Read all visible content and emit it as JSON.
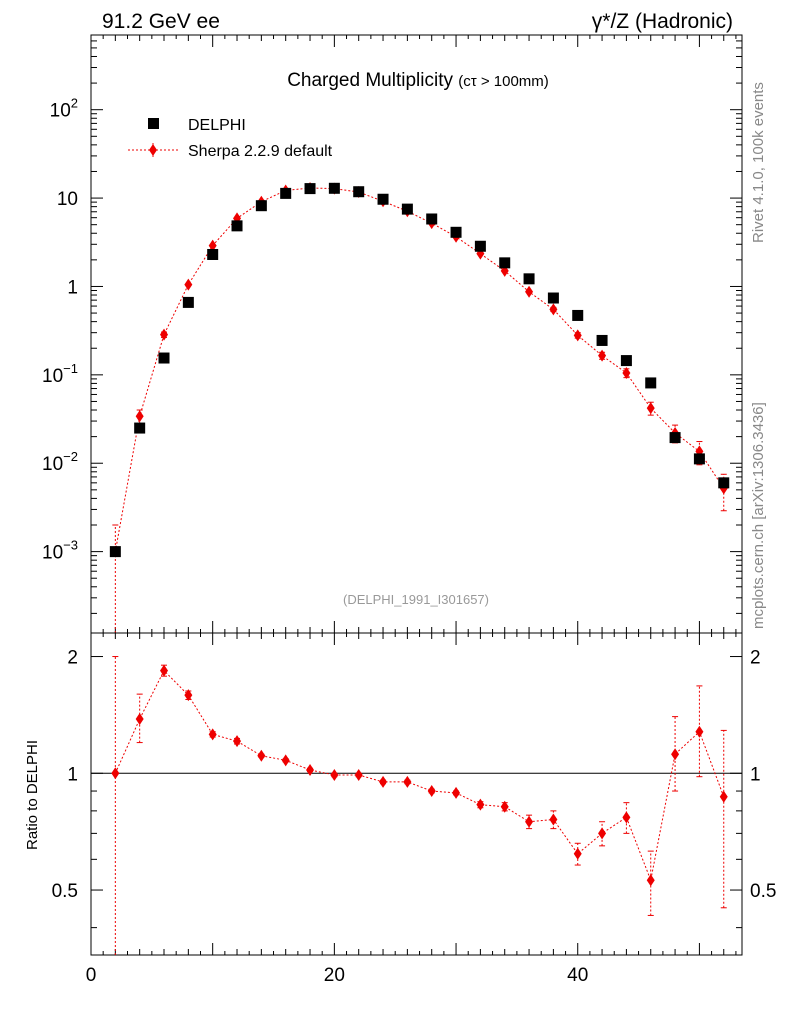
{
  "header": {
    "left": "91.2 GeV ee",
    "right_prefix": "γ*/Z",
    "right_suffix": " (Hadronic)"
  },
  "side": {
    "top": "Rivet 4.1.0,  100k events",
    "bottom": "mcplots.cern.ch [arXiv:1306.3436]"
  },
  "chart_data": {
    "type": "scatter",
    "title": "Charged Multiplicity",
    "title_suffix": "(cτ > 100mm)",
    "analysis": "(DELPHI_1991_I301657)",
    "xlabel": "",
    "ylabel": "",
    "ratio_ylabel": "Ratio to DELPHI",
    "xlim": [
      0,
      53.5
    ],
    "ylim": [
      0.00012,
      700
    ],
    "ylog": true,
    "ratio_ylim": [
      0.34,
      2.3
    ],
    "ratio_ylog": true,
    "x_ticks": [
      "0",
      "20",
      "40"
    ],
    "y_ticks": [
      {
        "base": "10",
        "exp": "−3"
      },
      {
        "base": "10",
        "exp": "−2"
      },
      {
        "base": "10",
        "exp": "−1"
      },
      {
        "base": "1",
        "exp": ""
      },
      {
        "base": "10",
        "exp": ""
      },
      {
        "base": "10",
        "exp": "2"
      }
    ],
    "ratio_ticks": [
      "0.5",
      "1",
      "2"
    ],
    "legend_position": "top-left",
    "series": [
      {
        "name": "DELPHI",
        "color": "#000000",
        "marker": "square",
        "x": [
          2,
          4,
          6,
          8,
          10,
          12,
          14,
          16,
          18,
          20,
          22,
          24,
          26,
          28,
          30,
          32,
          34,
          36,
          38,
          40,
          42,
          44,
          46,
          48,
          50,
          52
        ],
        "values": [
          0.001,
          0.025,
          0.155,
          0.66,
          2.3,
          4.85,
          8.2,
          11.3,
          12.8,
          12.9,
          11.8,
          9.7,
          7.5,
          5.8,
          4.1,
          2.85,
          1.85,
          1.22,
          0.74,
          0.47,
          0.245,
          0.145,
          0.081,
          0.0195,
          0.0112,
          0.006
        ]
      },
      {
        "name": "Sherpa 2.2.9 default",
        "color": "#ee0000",
        "marker": "diamond",
        "line": "dotted",
        "x": [
          2,
          4,
          6,
          8,
          10,
          12,
          14,
          16,
          18,
          20,
          22,
          24,
          26,
          28,
          30,
          32,
          34,
          36,
          38,
          40,
          42,
          44,
          46,
          48,
          50,
          52
        ],
        "values": [
          0.001,
          0.034,
          0.285,
          1.05,
          2.9,
          5.9,
          9.1,
          12.2,
          13.0,
          12.8,
          11.7,
          9.2,
          7.1,
          5.2,
          3.65,
          2.35,
          1.5,
          0.87,
          0.55,
          0.28,
          0.165,
          0.105,
          0.042,
          0.022,
          0.0136,
          0.0052
        ],
        "err_low": [
          0.001,
          0.006,
          0.02,
          0.04,
          0.06,
          0.1,
          0.1,
          0.1,
          0.1,
          0.1,
          0.1,
          0.1,
          0.1,
          0.08,
          0.06,
          0.05,
          0.04,
          0.03,
          0.03,
          0.02,
          0.015,
          0.012,
          0.007,
          0.005,
          0.004,
          0.0023
        ],
        "err_high": [
          0.001,
          0.006,
          0.02,
          0.04,
          0.06,
          0.1,
          0.1,
          0.1,
          0.1,
          0.1,
          0.1,
          0.1,
          0.1,
          0.08,
          0.06,
          0.05,
          0.04,
          0.03,
          0.03,
          0.02,
          0.015,
          0.012,
          0.007,
          0.005,
          0.004,
          0.0023
        ],
        "ratio": [
          1.0,
          1.38,
          1.84,
          1.59,
          1.26,
          1.21,
          1.11,
          1.08,
          1.02,
          0.99,
          0.99,
          0.95,
          0.95,
          0.9,
          0.89,
          0.83,
          0.82,
          0.75,
          0.76,
          0.62,
          0.7,
          0.77,
          0.53,
          1.12,
          1.28,
          0.87
        ],
        "ratio_err_low": [
          0.66,
          0.18,
          0.06,
          0.04,
          0.02,
          0.02,
          0.01,
          0.01,
          0.01,
          0.01,
          0.01,
          0.01,
          0.01,
          0.01,
          0.01,
          0.015,
          0.02,
          0.03,
          0.04,
          0.04,
          0.05,
          0.07,
          0.1,
          0.22,
          0.3,
          0.42
        ],
        "ratio_err_high": [
          1.0,
          0.22,
          0.06,
          0.04,
          0.02,
          0.02,
          0.01,
          0.01,
          0.01,
          0.01,
          0.01,
          0.01,
          0.01,
          0.01,
          0.01,
          0.015,
          0.02,
          0.03,
          0.04,
          0.04,
          0.05,
          0.07,
          0.1,
          0.28,
          0.4,
          0.42
        ]
      }
    ]
  }
}
